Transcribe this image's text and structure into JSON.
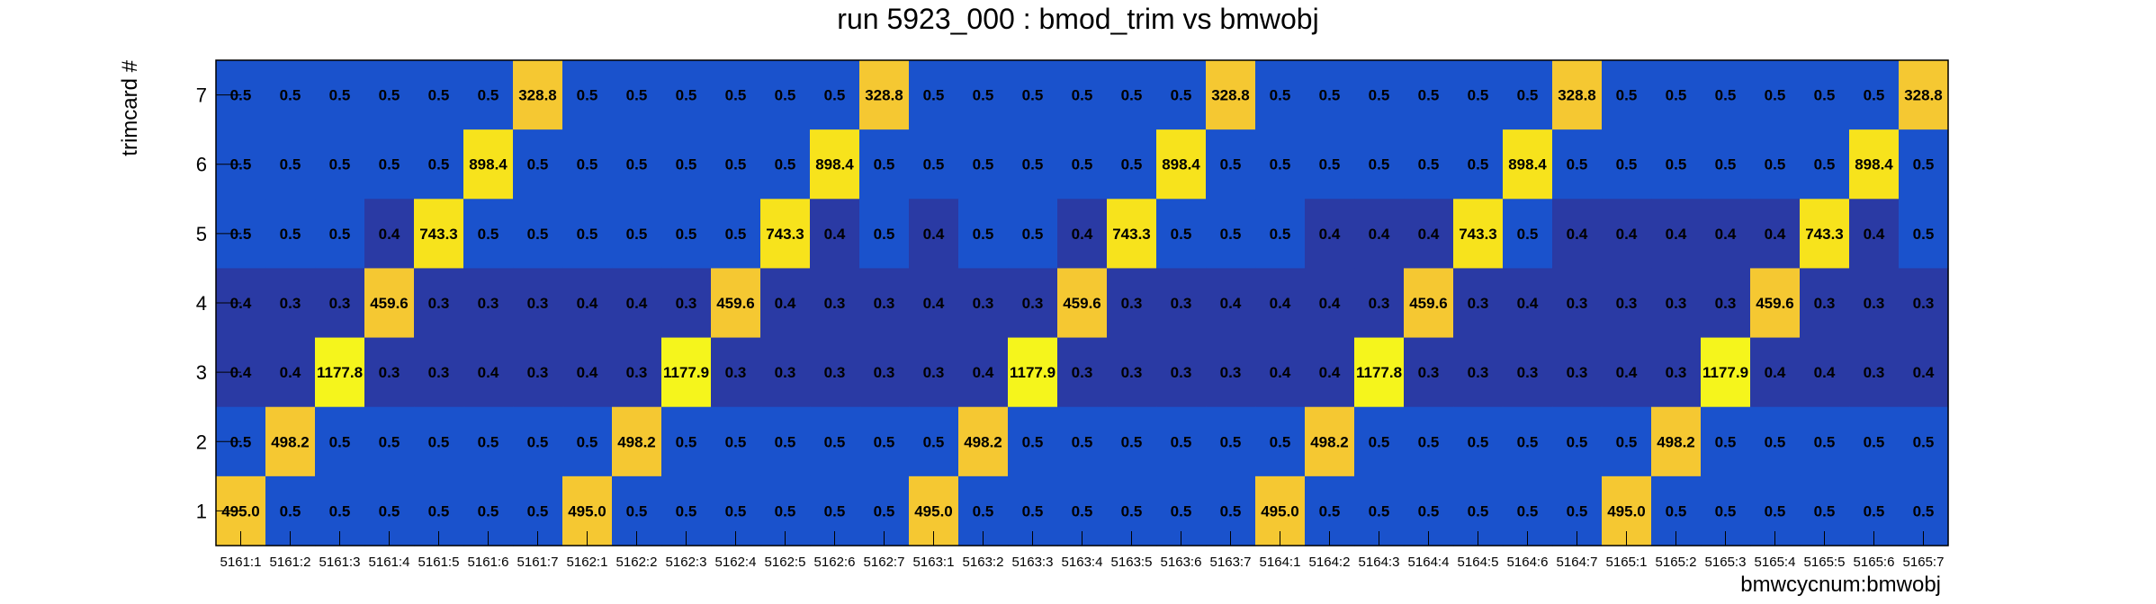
{
  "chart_data": {
    "type": "heatmap",
    "title": "run 5923_000 : bmod_trim vs bmwobj",
    "xlabel": "bmwcycnum:bmwobj",
    "ylabel": "trimcard #",
    "x_categories": [
      "5161:1",
      "5161:2",
      "5161:3",
      "5161:4",
      "5161:5",
      "5161:6",
      "5161:7",
      "5162:1",
      "5162:2",
      "5162:3",
      "5162:4",
      "5162:5",
      "5162:6",
      "5162:7",
      "5163:1",
      "5163:2",
      "5163:3",
      "5163:4",
      "5163:5",
      "5163:6",
      "5163:7",
      "5164:1",
      "5164:2",
      "5164:3",
      "5164:4",
      "5164:5",
      "5164:6",
      "5164:7",
      "5165:1",
      "5165:2",
      "5165:3",
      "5165:4",
      "5165:5",
      "5165:6",
      "5165:7"
    ],
    "y_categories": [
      "1",
      "2",
      "3",
      "4",
      "5",
      "6",
      "7"
    ],
    "rows": [
      {
        "y": "7",
        "values": [
          "0.5",
          "0.5",
          "0.5",
          "0.5",
          "0.5",
          "0.5",
          "328.8",
          "0.5",
          "0.5",
          "0.5",
          "0.5",
          "0.5",
          "0.5",
          "328.8",
          "0.5",
          "0.5",
          "0.5",
          "0.5",
          "0.5",
          "0.5",
          "328.8",
          "0.5",
          "0.5",
          "0.5",
          "0.5",
          "0.5",
          "0.5",
          "328.8",
          "0.5",
          "0.5",
          "0.5",
          "0.5",
          "0.5",
          "0.5",
          "328.8"
        ]
      },
      {
        "y": "6",
        "values": [
          "0.5",
          "0.5",
          "0.5",
          "0.5",
          "0.5",
          "898.4",
          "0.5",
          "0.5",
          "0.5",
          "0.5",
          "0.5",
          "0.5",
          "898.4",
          "0.5",
          "0.5",
          "0.5",
          "0.5",
          "0.5",
          "0.5",
          "898.4",
          "0.5",
          "0.5",
          "0.5",
          "0.5",
          "0.5",
          "0.5",
          "898.4",
          "0.5",
          "0.5",
          "0.5",
          "0.5",
          "0.5",
          "0.5",
          "898.4",
          "0.5"
        ]
      },
      {
        "y": "5",
        "values": [
          "0.5",
          "0.5",
          "0.5",
          "0.4",
          "743.3",
          "0.5",
          "0.5",
          "0.5",
          "0.5",
          "0.5",
          "0.5",
          "743.3",
          "0.4",
          "0.5",
          "0.4",
          "0.5",
          "0.5",
          "0.4",
          "743.3",
          "0.5",
          "0.5",
          "0.5",
          "0.4",
          "0.4",
          "0.4",
          "743.3",
          "0.5",
          "0.4",
          "0.4",
          "0.4",
          "0.4",
          "0.4",
          "743.3",
          "0.4",
          "0.5"
        ]
      },
      {
        "y": "4",
        "values": [
          "0.4",
          "0.3",
          "0.3",
          "459.6",
          "0.3",
          "0.3",
          "0.3",
          "0.4",
          "0.4",
          "0.3",
          "459.6",
          "0.4",
          "0.3",
          "0.3",
          "0.4",
          "0.3",
          "0.3",
          "459.6",
          "0.3",
          "0.3",
          "0.4",
          "0.4",
          "0.4",
          "0.3",
          "459.6",
          "0.3",
          "0.4",
          "0.3",
          "0.3",
          "0.3",
          "0.3",
          "459.6",
          "0.3",
          "0.3",
          "0.3"
        ]
      },
      {
        "y": "3",
        "values": [
          "0.4",
          "0.4",
          "1177.8",
          "0.3",
          "0.3",
          "0.4",
          "0.3",
          "0.4",
          "0.3",
          "1177.9",
          "0.3",
          "0.3",
          "0.3",
          "0.3",
          "0.3",
          "0.4",
          "1177.9",
          "0.3",
          "0.3",
          "0.3",
          "0.3",
          "0.4",
          "0.4",
          "1177.8",
          "0.3",
          "0.3",
          "0.3",
          "0.3",
          "0.4",
          "0.3",
          "1177.9",
          "0.4",
          "0.4",
          "0.3",
          "0.4"
        ]
      },
      {
        "y": "2",
        "values": [
          "0.5",
          "498.2",
          "0.5",
          "0.5",
          "0.5",
          "0.5",
          "0.5",
          "0.5",
          "498.2",
          "0.5",
          "0.5",
          "0.5",
          "0.5",
          "0.5",
          "0.5",
          "498.2",
          "0.5",
          "0.5",
          "0.5",
          "0.5",
          "0.5",
          "0.5",
          "498.2",
          "0.5",
          "0.5",
          "0.5",
          "0.5",
          "0.5",
          "0.5",
          "498.2",
          "0.5",
          "0.5",
          "0.5",
          "0.5",
          "0.5"
        ]
      },
      {
        "y": "1",
        "values": [
          "495.0",
          "0.5",
          "0.5",
          "0.5",
          "0.5",
          "0.5",
          "0.5",
          "495.0",
          "0.5",
          "0.5",
          "0.5",
          "0.5",
          "0.5",
          "0.5",
          "495.0",
          "0.5",
          "0.5",
          "0.5",
          "0.5",
          "0.5",
          "0.5",
          "495.0",
          "0.5",
          "0.5",
          "0.5",
          "0.5",
          "0.5",
          "0.5",
          "495.0",
          "0.5",
          "0.5",
          "0.5",
          "0.5",
          "0.5",
          "0.5"
        ]
      }
    ],
    "grid": false,
    "legend": "none"
  }
}
